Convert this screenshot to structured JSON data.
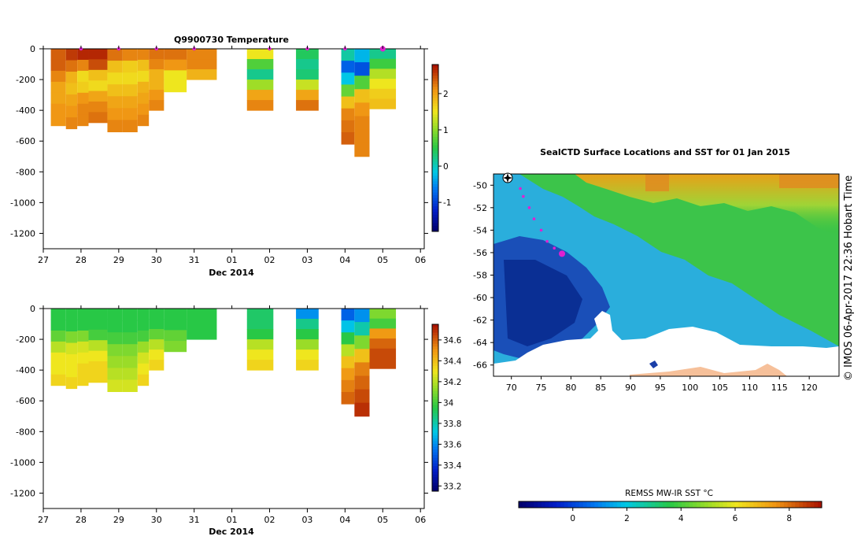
{
  "chart_data": [
    {
      "type": "heatmap",
      "title": "Q9900730  Temperature",
      "xlabel": "Dec 2014",
      "ylabel": "",
      "x_ticks": [
        "27",
        "28",
        "29",
        "30",
        "31",
        "01",
        "02",
        "03",
        "04",
        "05",
        "06"
      ],
      "x_range": [
        27,
        37.1
      ],
      "y_ticks": [
        0,
        -200,
        -400,
        -600,
        -800,
        -1000,
        -1200
      ],
      "ylim": [
        -1300,
        0
      ],
      "colorbar": {
        "ticks": [
          2,
          1,
          0,
          -1
        ],
        "range": [
          -1.8,
          2.8
        ]
      },
      "profile_markers": [
        28,
        29,
        30,
        31,
        33,
        34,
        35,
        36
      ],
      "profiles": [
        {
          "x0": 27.2,
          "x1": 27.6,
          "depth": 500,
          "values": [
            2.4,
            2.4,
            2.2,
            2.0,
            2.0,
            2.1,
            2.1
          ]
        },
        {
          "x0": 27.6,
          "x1": 27.9,
          "depth": 520,
          "values": [
            2.6,
            2.3,
            1.9,
            1.8,
            2.0,
            2.1,
            2.2
          ]
        },
        {
          "x0": 27.9,
          "x1": 28.2,
          "depth": 500,
          "values": [
            2.7,
            2.2,
            1.6,
            1.7,
            2.1,
            2.2,
            2.2
          ]
        },
        {
          "x0": 28.2,
          "x1": 28.7,
          "depth": 480,
          "values": [
            2.7,
            2.5,
            1.8,
            1.6,
            2.0,
            2.2,
            2.3
          ]
        },
        {
          "x0": 28.7,
          "x1": 29.1,
          "depth": 540,
          "values": [
            2.3,
            1.8,
            1.6,
            1.8,
            2.0,
            2.1,
            2.2
          ]
        },
        {
          "x0": 29.1,
          "x1": 29.5,
          "depth": 540,
          "values": [
            2.2,
            1.7,
            1.6,
            1.8,
            2.0,
            2.1,
            2.2
          ]
        },
        {
          "x0": 29.5,
          "x1": 29.8,
          "depth": 500,
          "values": [
            2.2,
            1.8,
            1.6,
            1.9,
            2.0,
            2.1,
            2.2
          ]
        },
        {
          "x0": 29.8,
          "x1": 30.2,
          "depth": 400,
          "values": [
            2.3,
            2.2,
            1.9,
            1.9,
            2.1,
            2.2
          ]
        },
        {
          "x0": 30.2,
          "x1": 30.8,
          "depth": 280,
          "values": [
            2.3,
            2.1,
            1.5,
            1.5
          ]
        },
        {
          "x0": 30.8,
          "x1": 31.6,
          "depth": 200,
          "values": [
            2.2,
            2.2,
            1.9
          ]
        },
        {
          "x0": 32.4,
          "x1": 33.1,
          "depth": 400,
          "values": [
            1.5,
            0.7,
            0.2,
            1.1,
            2.0,
            2.2
          ]
        },
        {
          "x0": 33.7,
          "x1": 34.3,
          "depth": 400,
          "values": [
            0.4,
            0.2,
            0.3,
            1.3,
            2.0,
            2.3
          ]
        },
        {
          "x0": 34.9,
          "x1": 35.25,
          "depth": 620,
          "values": [
            0.1,
            -0.8,
            -0.2,
            0.8,
            1.8,
            2.2,
            2.3,
            2.4
          ]
        },
        {
          "x0": 35.25,
          "x1": 35.65,
          "depth": 700,
          "values": [
            -0.3,
            -0.9,
            0.7,
            1.8,
            2.1,
            2.2,
            2.2,
            2.2
          ]
        },
        {
          "x0": 35.65,
          "x1": 36.35,
          "depth": 390,
          "values": [
            0.2,
            0.6,
            1.2,
            1.5,
            1.7,
            1.8
          ]
        }
      ]
    },
    {
      "type": "heatmap",
      "title": "",
      "xlabel": "Dec 2014",
      "ylabel": "",
      "x_ticks": [
        "27",
        "28",
        "29",
        "30",
        "31",
        "01",
        "02",
        "03",
        "04",
        "05",
        "06"
      ],
      "x_range": [
        27,
        37.1
      ],
      "y_ticks": [
        0,
        -200,
        -400,
        -600,
        -800,
        -1000,
        -1200
      ],
      "ylim": [
        -1300,
        0
      ],
      "colorbar": {
        "ticks": [
          34.6,
          34.4,
          34.2,
          34,
          33.8,
          33.6,
          33.4,
          33.2
        ],
        "range": [
          33.15,
          34.75
        ]
      },
      "profiles": [
        {
          "x0": 27.2,
          "x1": 27.6,
          "depth": 500,
          "values": [
            33.95,
            33.95,
            34.05,
            34.2,
            34.3,
            34.3,
            34.35
          ]
        },
        {
          "x0": 27.6,
          "x1": 27.9,
          "depth": 520,
          "values": [
            33.95,
            33.95,
            34.1,
            34.25,
            34.3,
            34.3,
            34.35
          ]
        },
        {
          "x0": 27.9,
          "x1": 28.2,
          "depth": 500,
          "values": [
            33.95,
            33.95,
            34.1,
            34.25,
            34.3,
            34.35,
            34.35
          ]
        },
        {
          "x0": 28.2,
          "x1": 28.7,
          "depth": 480,
          "values": [
            33.95,
            33.95,
            34.0,
            34.2,
            34.3,
            34.35,
            34.35
          ]
        },
        {
          "x0": 28.7,
          "x1": 29.1,
          "depth": 540,
          "values": [
            33.95,
            33.95,
            34.0,
            34.1,
            34.15,
            34.2,
            34.25
          ]
        },
        {
          "x0": 29.1,
          "x1": 29.5,
          "depth": 540,
          "values": [
            33.95,
            33.95,
            34.0,
            34.1,
            34.15,
            34.2,
            34.25
          ]
        },
        {
          "x0": 29.5,
          "x1": 29.8,
          "depth": 500,
          "values": [
            33.95,
            33.95,
            34.0,
            34.15,
            34.25,
            34.3,
            34.35
          ]
        },
        {
          "x0": 29.8,
          "x1": 30.2,
          "depth": 400,
          "values": [
            33.95,
            33.95,
            34.05,
            34.2,
            34.3,
            34.35
          ]
        },
        {
          "x0": 30.2,
          "x1": 30.8,
          "depth": 280,
          "values": [
            33.95,
            33.95,
            34.05,
            34.1
          ]
        },
        {
          "x0": 30.8,
          "x1": 31.6,
          "depth": 200,
          "values": [
            33.95,
            33.95,
            33.95
          ]
        },
        {
          "x0": 32.4,
          "x1": 33.1,
          "depth": 400,
          "values": [
            33.9,
            33.9,
            33.95,
            34.2,
            34.3,
            34.35
          ]
        },
        {
          "x0": 33.7,
          "x1": 34.3,
          "depth": 400,
          "values": [
            33.6,
            33.85,
            33.95,
            34.15,
            34.3,
            34.35
          ]
        },
        {
          "x0": 34.9,
          "x1": 35.25,
          "depth": 620,
          "values": [
            33.5,
            33.7,
            33.95,
            34.2,
            34.4,
            34.5,
            34.55,
            34.6
          ]
        },
        {
          "x0": 35.25,
          "x1": 35.65,
          "depth": 700,
          "values": [
            33.6,
            33.8,
            34.1,
            34.4,
            34.55,
            34.6,
            34.65,
            34.7
          ]
        },
        {
          "x0": 35.65,
          "x1": 36.35,
          "depth": 390,
          "values": [
            34.1,
            34.0,
            34.5,
            34.6,
            34.65,
            34.65
          ]
        }
      ]
    },
    {
      "type": "heatmap",
      "title": "SealCTD Surface Locations and SST for 01 Jan 2015",
      "x_ticks": [
        "70",
        "75",
        "80",
        "85",
        "90",
        "95",
        "100",
        "105",
        "110",
        "115",
        "120"
      ],
      "x_range": [
        67,
        125
      ],
      "y_ticks": [
        "-50",
        "-52",
        "-54",
        "-56",
        "-58",
        "-60",
        "-62",
        "-64",
        "-66"
      ],
      "y_range": [
        -67,
        -49
      ],
      "colorbar_label": "REMSS MW-IR SST °C",
      "colorbar_ticks": [
        "0",
        "2",
        "4",
        "6",
        "8"
      ],
      "colorbar_range": [
        -2,
        9.2
      ],
      "track": [
        [
          71.5,
          -50.3
        ],
        [
          72,
          -51
        ],
        [
          73,
          -52
        ],
        [
          73.8,
          -53
        ],
        [
          75,
          -54
        ],
        [
          76,
          -55
        ],
        [
          77.2,
          -55.6
        ],
        [
          78.3,
          -56
        ]
      ],
      "track_end": [
        78.5,
        -56.1
      ],
      "watermark": "© IMOS 06-Apr-2017 22:36 Hobart Time"
    }
  ]
}
